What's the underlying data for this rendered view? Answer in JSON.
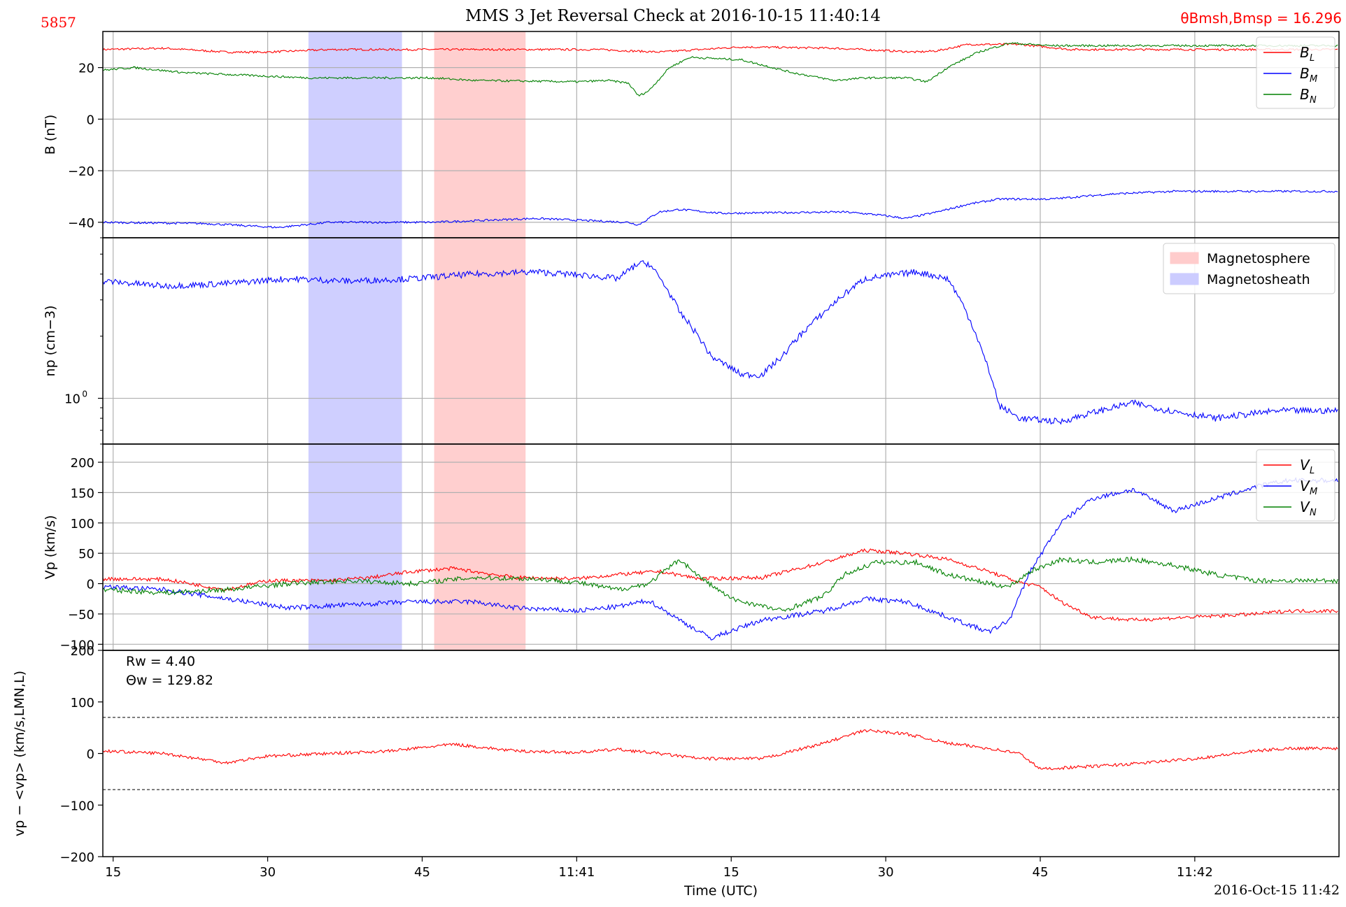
{
  "title": "MMS 3 Jet Reversal Check at 2016-10-15 11:40:14",
  "corner_id": "5857",
  "angle_label": "θBmsh,Bmsp = 16.296",
  "date_stamp": "2016-Oct-15 11:42",
  "colors": {
    "red": "#ff0000",
    "blue": "#0000ff",
    "green": "#008000",
    "magnetosphere": "#ffcccc",
    "magnetosheath": "#ccccff",
    "grid": "#b0b0b0"
  },
  "chart_data": [
    {
      "type": "line",
      "panel": "B",
      "ylabel": "B (nT)",
      "ylim": [
        -46,
        34
      ],
      "yticks": [
        -40,
        -20,
        0,
        20
      ],
      "grid": true,
      "legend": "top-right",
      "series": [
        {
          "name": "BL",
          "color": "#ff0000",
          "noise": 0.4,
          "points": [
            [
              14,
              27
            ],
            [
              20,
              27.5
            ],
            [
              26,
              26
            ],
            [
              30,
              26
            ],
            [
              36,
              27
            ],
            [
              46,
              27
            ],
            [
              54,
              27
            ],
            [
              62,
              27
            ],
            [
              68,
              26
            ],
            [
              70,
              26.5
            ],
            [
              76,
              28
            ],
            [
              85,
              27.5
            ],
            [
              93,
              26
            ],
            [
              95,
              26.5
            ],
            [
              98,
              29
            ],
            [
              103,
              29
            ],
            [
              108,
              27
            ],
            [
              118,
              27
            ]
          ]
        },
        {
          "name": "BM",
          "color": "#0000ff",
          "noise": 0.4,
          "points": [
            [
              14,
              -40
            ],
            [
              24,
              -40.5
            ],
            [
              31,
              -42
            ],
            [
              36,
              -40
            ],
            [
              46,
              -40
            ],
            [
              56,
              -38.5
            ],
            [
              65,
              -40
            ],
            [
              66,
              -41
            ],
            [
              68,
              -36
            ],
            [
              70,
              -35
            ],
            [
              74,
              -36.5
            ],
            [
              86,
              -36
            ],
            [
              89,
              -37
            ],
            [
              92,
              -38.5
            ],
            [
              95,
              -36
            ],
            [
              98,
              -33
            ],
            [
              101,
              -31
            ],
            [
              106,
              -31
            ],
            [
              112,
              -29
            ],
            [
              118,
              -28
            ]
          ]
        },
        {
          "name": "BN",
          "color": "#008000",
          "noise": 0.4,
          "points": [
            [
              14,
              19
            ],
            [
              17,
              20
            ],
            [
              22,
              18
            ],
            [
              28,
              17
            ],
            [
              34,
              16
            ],
            [
              46,
              16
            ],
            [
              50,
              15
            ],
            [
              60,
              14.5
            ],
            [
              63,
              15
            ],
            [
              65,
              14
            ],
            [
              66,
              9
            ],
            [
              67,
              11
            ],
            [
              69,
              20
            ],
            [
              71,
              24
            ],
            [
              76,
              23
            ],
            [
              81,
              18
            ],
            [
              85,
              15
            ],
            [
              88,
              16
            ],
            [
              92,
              16
            ],
            [
              94,
              14.5
            ],
            [
              96,
              20
            ],
            [
              99,
              26
            ],
            [
              102,
              29.5
            ],
            [
              106,
              28.5
            ],
            [
              118,
              28.5
            ]
          ]
        }
      ]
    },
    {
      "type": "line",
      "panel": "np",
      "ylabel": "np (cm−3)",
      "yscale": "log",
      "ylim": [
        0.6,
        6
      ],
      "yticks": [
        1
      ],
      "grid": true,
      "legend": "top-right",
      "legend_entries": [
        {
          "name": "Magnetosphere",
          "color": "#ffcccc"
        },
        {
          "name": "Magnetosheath",
          "color": "#ccccff"
        }
      ],
      "series": [
        {
          "name": "np",
          "color": "#0000ff",
          "noise": 0.035,
          "points": [
            [
              14,
              3.7
            ],
            [
              20,
              3.5
            ],
            [
              26,
              3.6
            ],
            [
              32,
              3.8
            ],
            [
              38,
              3.7
            ],
            [
              44,
              3.8
            ],
            [
              50,
              4
            ],
            [
              56,
              4.1
            ],
            [
              62,
              3.9
            ],
            [
              64,
              3.8
            ],
            [
              66,
              4.5
            ],
            [
              67,
              4.5
            ],
            [
              70,
              2.6
            ],
            [
              73,
              1.6
            ],
            [
              76,
              1.3
            ],
            [
              78,
              1.3
            ],
            [
              80,
              1.6
            ],
            [
              84,
              2.6
            ],
            [
              88,
              3.8
            ],
            [
              93,
              4.1
            ],
            [
              96,
              3.8
            ],
            [
              98,
              2.5
            ],
            [
              99.5,
              1.6
            ],
            [
              101,
              0.92
            ],
            [
              103,
              0.8
            ],
            [
              107,
              0.77
            ],
            [
              110,
              0.85
            ],
            [
              114,
              0.95
            ],
            [
              117,
              0.88
            ],
            [
              122,
              0.8
            ],
            [
              128,
              0.87
            ]
          ]
        }
      ]
    },
    {
      "type": "line",
      "panel": "Vp",
      "ylabel": "Vp (km/s)",
      "ylim": [
        -110,
        230
      ],
      "yticks": [
        -100,
        -50,
        0,
        50,
        100,
        150,
        200
      ],
      "grid": true,
      "legend": "top-right",
      "series": [
        {
          "name": "VL",
          "color": "#ff0000",
          "noise": 3,
          "points": [
            [
              14,
              8
            ],
            [
              20,
              7
            ],
            [
              26,
              -10
            ],
            [
              30,
              5
            ],
            [
              36,
              5
            ],
            [
              40,
              10
            ],
            [
              44,
              20
            ],
            [
              48,
              25
            ],
            [
              54,
              10
            ],
            [
              60,
              8
            ],
            [
              64,
              15
            ],
            [
              68,
              20
            ],
            [
              72,
              8
            ],
            [
              78,
              10
            ],
            [
              84,
              35
            ],
            [
              88,
              55
            ],
            [
              92,
              50
            ],
            [
              96,
              40
            ],
            [
              100,
              20
            ],
            [
              103,
              2
            ],
            [
              105,
              -5
            ],
            [
              107,
              -30
            ],
            [
              110,
              -55
            ],
            [
              114,
              -60
            ],
            [
              120,
              -55
            ],
            [
              126,
              -50
            ],
            [
              129,
              -45
            ]
          ]
        },
        {
          "name": "VM",
          "color": "#0000ff",
          "noise": 4,
          "points": [
            [
              14,
              -5
            ],
            [
              20,
              -10
            ],
            [
              26,
              -25
            ],
            [
              32,
              -40
            ],
            [
              38,
              -35
            ],
            [
              44,
              -30
            ],
            [
              50,
              -30
            ],
            [
              54,
              -40
            ],
            [
              60,
              -45
            ],
            [
              64,
              -38
            ],
            [
              67,
              -28
            ],
            [
              70,
              -60
            ],
            [
              73,
              -90
            ],
            [
              78,
              -60
            ],
            [
              84,
              -45
            ],
            [
              88,
              -25
            ],
            [
              92,
              -30
            ],
            [
              96,
              -55
            ],
            [
              100,
              -80
            ],
            [
              102,
              -60
            ],
            [
              104,
              20
            ],
            [
              107,
              100
            ],
            [
              110,
              140
            ],
            [
              114,
              155
            ],
            [
              118,
              120
            ],
            [
              122,
              140
            ],
            [
              126,
              160
            ],
            [
              129,
              170
            ]
          ]
        },
        {
          "name": "VN",
          "color": "#008000",
          "noise": 4,
          "points": [
            [
              14,
              -10
            ],
            [
              20,
              -15
            ],
            [
              26,
              -10
            ],
            [
              32,
              0
            ],
            [
              38,
              5
            ],
            [
              44,
              0
            ],
            [
              50,
              10
            ],
            [
              56,
              8
            ],
            [
              60,
              2
            ],
            [
              64,
              -10
            ],
            [
              67,
              0
            ],
            [
              70,
              40
            ],
            [
              72,
              10
            ],
            [
              75,
              -25
            ],
            [
              80,
              -45
            ],
            [
              84,
              -20
            ],
            [
              86,
              15
            ],
            [
              89,
              35
            ],
            [
              93,
              35
            ],
            [
              96,
              15
            ],
            [
              100,
              0
            ],
            [
              102,
              -5
            ],
            [
              104,
              20
            ],
            [
              107,
              40
            ],
            [
              110,
              35
            ],
            [
              114,
              40
            ],
            [
              118,
              30
            ],
            [
              122,
              15
            ],
            [
              126,
              5
            ],
            [
              129,
              5
            ]
          ]
        }
      ]
    },
    {
      "type": "line",
      "panel": "dv",
      "ylabel": "vp − <vp> (km/s,LMN,L)",
      "ylim": [
        -200,
        200
      ],
      "yticks": [
        -200,
        -100,
        0,
        100,
        200
      ],
      "grid": false,
      "hlines": [
        70,
        -70
      ],
      "annotations": [
        "Rw = 4.40",
        "Θw = 129.82"
      ],
      "series": [
        {
          "name": "ΔvL",
          "color": "#ff0000",
          "noise": 3,
          "points": [
            [
              14,
              5
            ],
            [
              20,
              0
            ],
            [
              26,
              -18
            ],
            [
              30,
              -5
            ],
            [
              36,
              0
            ],
            [
              42,
              5
            ],
            [
              48,
              18
            ],
            [
              54,
              5
            ],
            [
              60,
              2
            ],
            [
              64,
              8
            ],
            [
              68,
              0
            ],
            [
              72,
              -10
            ],
            [
              78,
              -10
            ],
            [
              84,
              20
            ],
            [
              88,
              45
            ],
            [
              92,
              38
            ],
            [
              96,
              20
            ],
            [
              100,
              10
            ],
            [
              103,
              0
            ],
            [
              105,
              -30
            ],
            [
              110,
              -25
            ],
            [
              114,
              -20
            ],
            [
              120,
              -10
            ],
            [
              126,
              5
            ],
            [
              129,
              10
            ]
          ]
        }
      ]
    }
  ],
  "shaded_regions": [
    {
      "name": "Magnetosheath",
      "x": [
        34,
        43
      ],
      "color": "#ccccff"
    },
    {
      "name": "Magnetosphere",
      "x": [
        46.2,
        55
      ],
      "color": "#ffcccc"
    }
  ],
  "xaxis": {
    "label": "Time (UTC)",
    "unit": "seconds after 11:40:00",
    "xlim": [
      14,
      134
    ],
    "ticks": [
      {
        "t": 15,
        "label": "15"
      },
      {
        "t": 30,
        "label": "30"
      },
      {
        "t": 45,
        "label": "45"
      },
      {
        "t": 60,
        "label": "11:41"
      },
      {
        "t": 75,
        "label": "15"
      },
      {
        "t": 90,
        "label": "30"
      },
      {
        "t": 105,
        "label": "45"
      },
      {
        "t": 120,
        "label": "11:42"
      }
    ]
  }
}
